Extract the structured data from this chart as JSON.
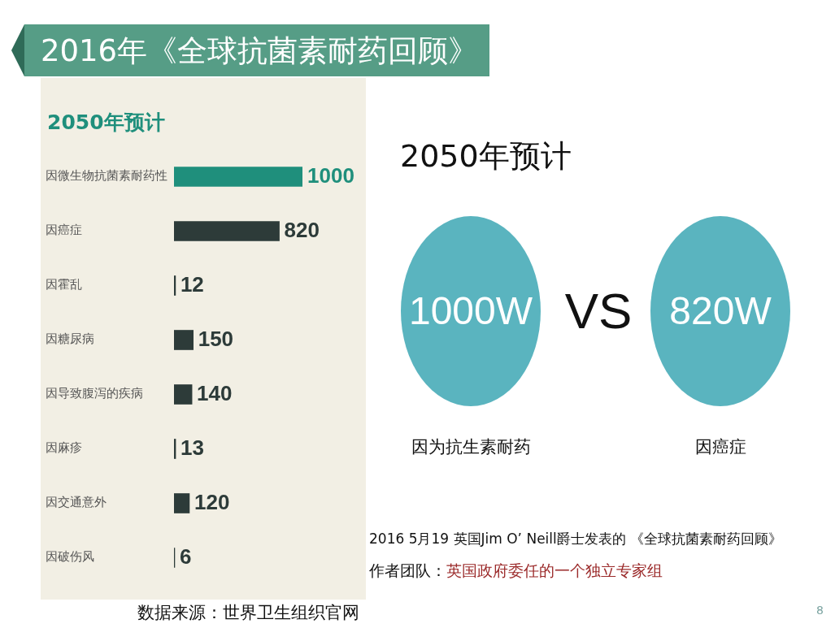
{
  "chart_data": [
    {
      "type": "bar",
      "orientation": "horizontal",
      "title": "2016年《全球抗菌素耐药回顾》",
      "subtitle": "2050年预计",
      "categories": [
        "因微生物抗菌素耐药性",
        "因癌症",
        "因霍乱",
        "因糖尿病",
        "因导致腹泻的疾病",
        "因麻疹",
        "因交通意外",
        "因破伤风"
      ],
      "values": [
        1000,
        820,
        12,
        150,
        140,
        13,
        120,
        6
      ],
      "colors": [
        "#1f8f7c",
        "#2d3b39",
        "#2d3b39",
        "#2d3b39",
        "#2d3b39",
        "#2d3b39",
        "#2d3b39",
        "#2d3b39"
      ],
      "data_labels": true,
      "tick_labels": "y",
      "grid": false,
      "legend": false,
      "annotations": [
        "数据来源：世界卫生组织官网"
      ]
    },
    {
      "type": "other",
      "title": "2050年预计",
      "annotations": [
        "1000W",
        "VS",
        "820W",
        "因为抗生素耐药",
        "因癌症",
        "2016 5月19  英国Jim O’ Neill爵士发表的 《全球抗菌素耐药回顾》",
        "作者团队：",
        "英国政府委任的一个独立专家组",
        "8"
      ]
    }
  ]
}
